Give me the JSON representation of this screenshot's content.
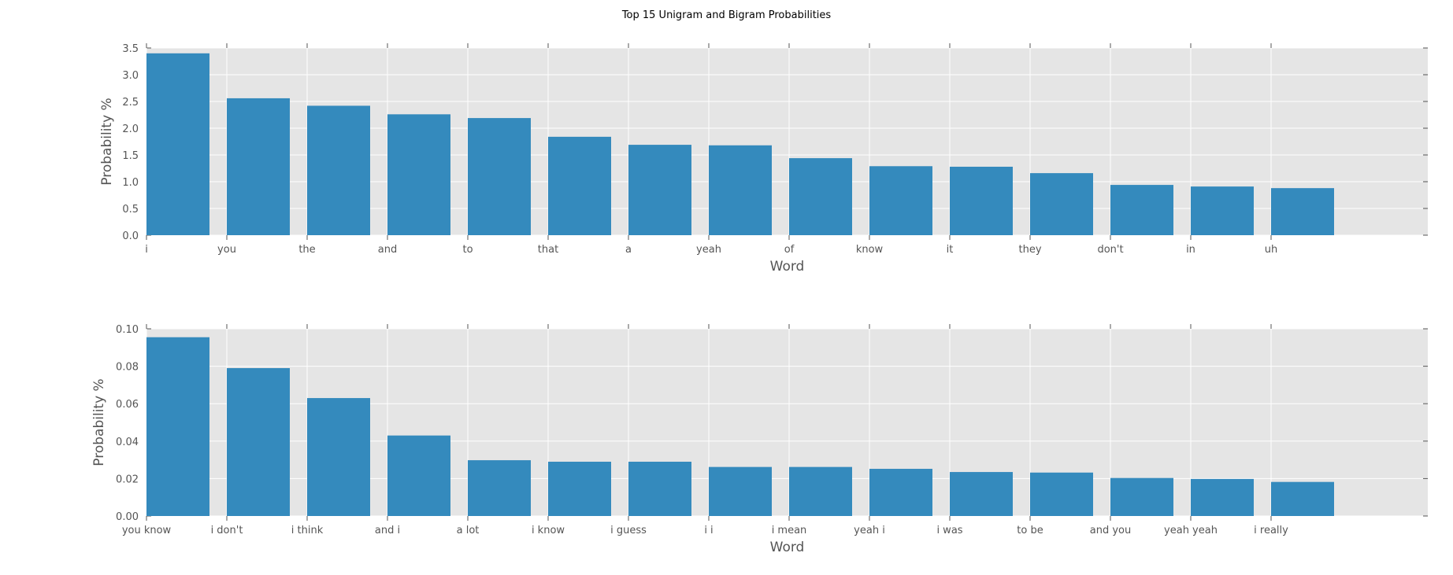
{
  "figure": {
    "title": "Top 15 Unigram and Bigram Probabilities"
  },
  "colors": {
    "bar": "#348abd",
    "panel": "#e5e5e5",
    "grid": "#ffffff",
    "tick_text": "#555555",
    "label_text": "#555555"
  },
  "chart_data": [
    {
      "type": "bar",
      "xlabel": "Word",
      "ylabel": "Probability %",
      "ylim": [
        0,
        3.5
      ],
      "yticks": [
        "0.0",
        "0.5",
        "1.0",
        "1.5",
        "2.0",
        "2.5",
        "3.0",
        "3.5"
      ],
      "categories": [
        "i",
        "you",
        "the",
        "and",
        "to",
        "that",
        "a",
        "yeah",
        "of",
        "know",
        "it",
        "they",
        "don't",
        "in",
        "uh"
      ],
      "values": [
        3.4,
        2.56,
        2.42,
        2.26,
        2.19,
        1.84,
        1.69,
        1.68,
        1.44,
        1.29,
        1.28,
        1.16,
        0.94,
        0.91,
        0.88
      ],
      "grid": true
    },
    {
      "type": "bar",
      "xlabel": "Word",
      "ylabel": "Probability %",
      "ylim": [
        0,
        0.1
      ],
      "yticks": [
        "0.00",
        "0.02",
        "0.04",
        "0.06",
        "0.08",
        "0.10"
      ],
      "categories": [
        "you know",
        "i don't",
        "i think",
        "and i",
        "a lot",
        "i know",
        "i guess",
        "i i",
        "i mean",
        "yeah i",
        "i was",
        "to be",
        "and you",
        "yeah yeah",
        "i really"
      ],
      "values": [
        0.0955,
        0.079,
        0.063,
        0.043,
        0.0298,
        0.029,
        0.029,
        0.0262,
        0.0262,
        0.0252,
        0.0235,
        0.0232,
        0.0203,
        0.0198,
        0.0182
      ],
      "grid": true
    }
  ]
}
